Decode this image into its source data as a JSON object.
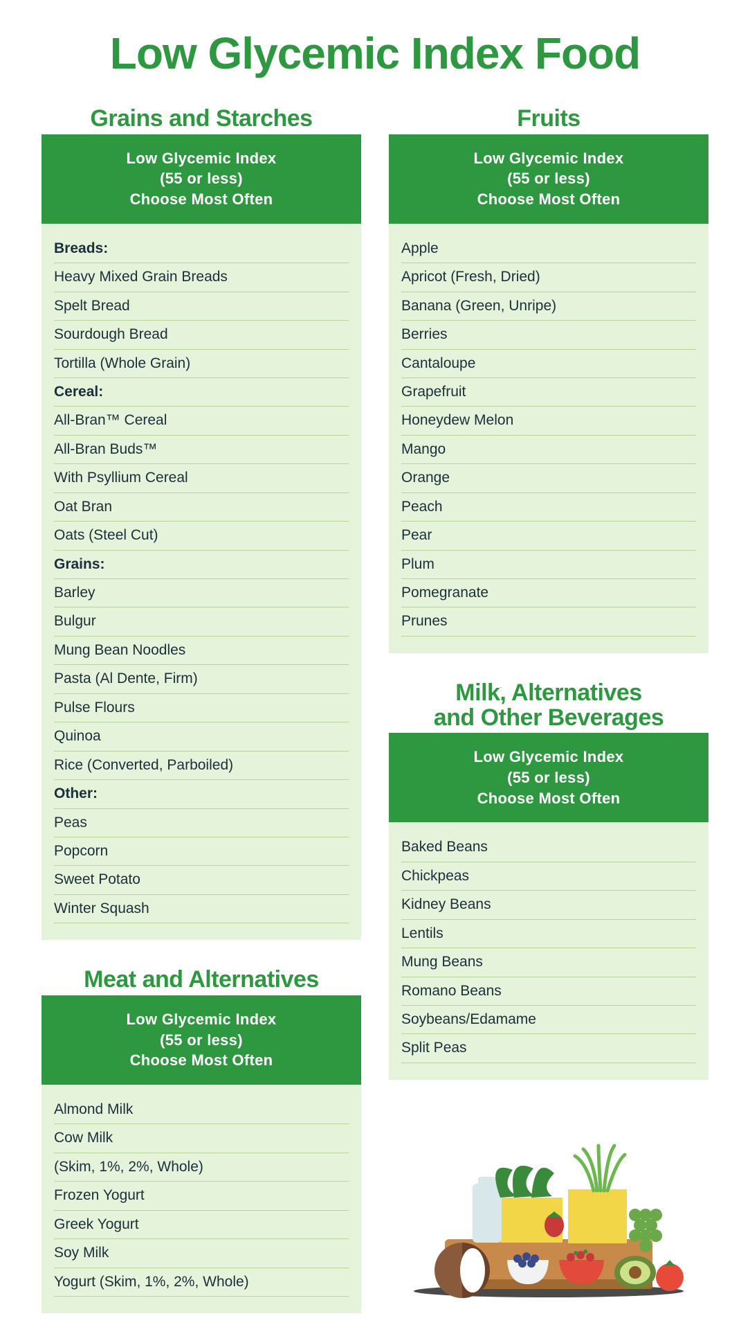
{
  "page_title": "Low Glycemic Index Food",
  "header_box": {
    "line1": "Low Glycemic Index",
    "line2": "(55 or less)",
    "line3": "Choose Most Often"
  },
  "colors": {
    "accent_green": "#2d9840",
    "list_bg": "#e6f3db",
    "divider": "#b8d49a",
    "text": "#1a2f3a",
    "white": "#ffffff"
  },
  "typography": {
    "main_title_size": 64,
    "section_title_size": 34,
    "header_box_size": 22,
    "list_row_size": 21
  },
  "sections": {
    "grains": {
      "title": "Grains and Starches",
      "rows": [
        {
          "text": "Breads:",
          "subhead": true
        },
        {
          "text": "Heavy Mixed Grain Breads"
        },
        {
          "text": "Spelt Bread"
        },
        {
          "text": "Sourdough Bread"
        },
        {
          "text": "Tortilla (Whole Grain)"
        },
        {
          "text": "Cereal:",
          "subhead": true
        },
        {
          "text": "All-Bran™ Cereal"
        },
        {
          "text": "All-Bran Buds™"
        },
        {
          "text": "With Psyllium Cereal"
        },
        {
          "text": "Oat Bran"
        },
        {
          "text": "Oats (Steel Cut)"
        },
        {
          "text": "Grains:",
          "subhead": true
        },
        {
          "text": "Barley"
        },
        {
          "text": "Bulgur"
        },
        {
          "text": "Mung Bean Noodles"
        },
        {
          "text": "Pasta (Al Dente, Firm)"
        },
        {
          "text": "Pulse Flours"
        },
        {
          "text": "Quinoa"
        },
        {
          "text": "Rice (Converted, Parboiled)"
        },
        {
          "text": "Other:",
          "subhead": true
        },
        {
          "text": "Peas"
        },
        {
          "text": "Popcorn"
        },
        {
          "text": "Sweet Potato"
        },
        {
          "text": "Winter Squash"
        }
      ]
    },
    "meat": {
      "title": "Meat and Alternatives",
      "rows": [
        {
          "text": "Almond Milk"
        },
        {
          "text": "Cow Milk"
        },
        {
          "text": "(Skim, 1%, 2%, Whole)"
        },
        {
          "text": "Frozen Yogurt"
        },
        {
          "text": "Greek Yogurt"
        },
        {
          "text": "Soy Milk"
        },
        {
          "text": "Yogurt (Skim, 1%, 2%, Whole)"
        }
      ]
    },
    "fruits": {
      "title": "Fruits",
      "rows": [
        {
          "text": "Apple"
        },
        {
          "text": "Apricot (Fresh, Dried)"
        },
        {
          "text": "Banana (Green, Unripe)"
        },
        {
          "text": "Berries"
        },
        {
          "text": "Cantaloupe"
        },
        {
          "text": "Grapefruit"
        },
        {
          "text": "Honeydew Melon"
        },
        {
          "text": "Mango"
        },
        {
          "text": "Orange"
        },
        {
          "text": "Peach"
        },
        {
          "text": "Pear"
        },
        {
          "text": "Plum"
        },
        {
          "text": "Pomegranate"
        },
        {
          "text": "Prunes"
        }
      ]
    },
    "milk": {
      "title_line1": "Milk, Alternatives",
      "title_line2": "and Other Beverages",
      "rows": [
        {
          "text": "Baked Beans"
        },
        {
          "text": "Chickpeas"
        },
        {
          "text": "Kidney Beans"
        },
        {
          "text": "Lentils"
        },
        {
          "text": "Mung Beans"
        },
        {
          "text": "Romano Beans"
        },
        {
          "text": "Soybeans/Edamame"
        },
        {
          "text": "Split Peas"
        }
      ]
    }
  },
  "illustration": {
    "colors": {
      "board": "#c88a4a",
      "board_dark": "#a06a32",
      "yellow_box": "#f3d548",
      "leaf_green": "#3a8a3c",
      "grass_green": "#6db84e",
      "coconut": "#8a5a3c",
      "coconut_inner": "#fff",
      "bowl_white": "#f2f2f2",
      "bowl_red": "#e24a3b",
      "berry_blue": "#3a4a8a",
      "berry_red": "#c83a3a",
      "jar": "#d8e8ea",
      "avocado": "#6a8a3a",
      "avocado_inner": "#cde08a",
      "avocado_pit": "#8a5a2a",
      "tomato": "#e84a3a",
      "grapes": "#6aa84a",
      "shadow": "#2a2a2a"
    }
  }
}
